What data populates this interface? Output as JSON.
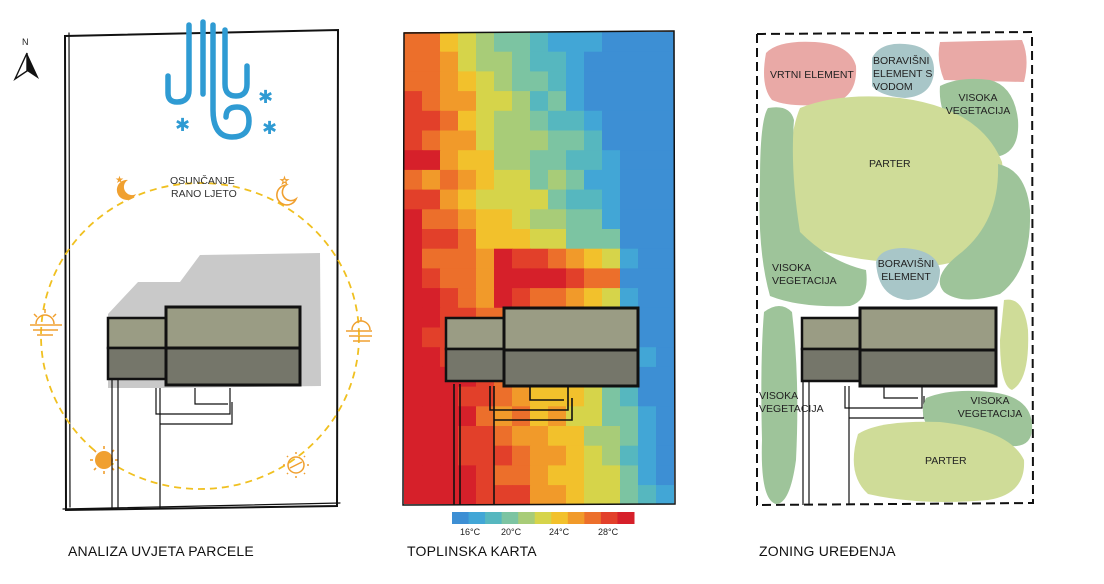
{
  "panels": {
    "site": {
      "caption": "ANALIZA UVJETA PARCELE",
      "north_label": "N",
      "sun_label_line1": "OSUNČANJE",
      "sun_label_line2": "RANO LJETO"
    },
    "heat": {
      "caption": "TOPLINSKA KARTA",
      "scale_ticks": [
        "16°C",
        "20°C",
        "24°C",
        "28°C"
      ],
      "scale_colors": [
        "#3d8fd4",
        "#42a6d6",
        "#56b7bf",
        "#7cc4a2",
        "#a8cc78",
        "#d6d44a",
        "#f2c12c",
        "#f19a2a",
        "#ec6f2b",
        "#e2402a",
        "#d6202a"
      ]
    },
    "zoning": {
      "caption": "ZONING UREĐENJA",
      "zones": [
        {
          "label": "VRTNI ELEMENT"
        },
        {
          "label": "BORAVIŠNI ELEMENT S VODOM"
        },
        {
          "label": "VISOKA VEGETACIJA"
        },
        {
          "label": "PARTER"
        },
        {
          "label": "VISOKA VEGETACIJA"
        },
        {
          "label": "BORAVIŠNI ELEMENT"
        },
        {
          "label": "VISOKA VEGETACIJA"
        },
        {
          "label": "VISOKA VEGETACIJA"
        },
        {
          "label": "PARTER"
        }
      ]
    }
  },
  "colors": {
    "building_top": "#9a9c84",
    "building_bottom": "#75766a",
    "shadow": "#c9c9c9",
    "sun_path": "#f0c020",
    "sun_icon": "#f0a030",
    "wind": "#2f9bd3",
    "zone_pink": "#e9a9a6",
    "zone_green": "#9ec49a",
    "zone_lightgreen": "#cfdc98",
    "zone_blue": "#a8c6c8"
  }
}
